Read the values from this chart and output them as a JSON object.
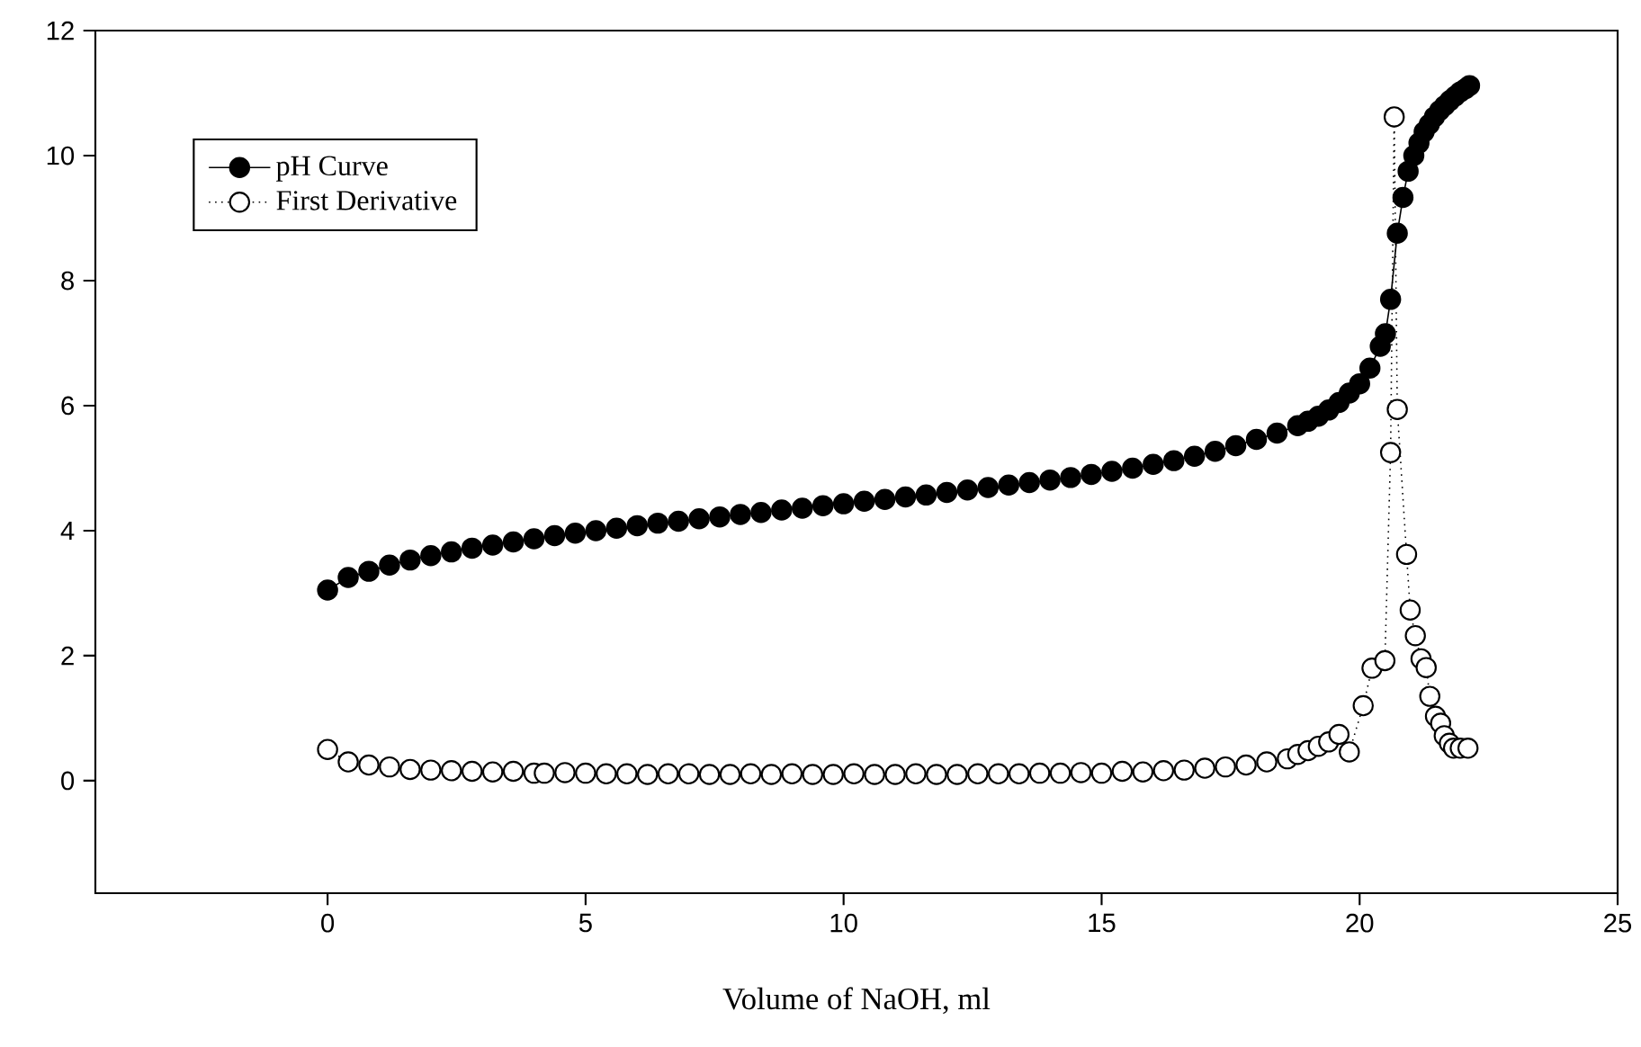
{
  "chart_data": {
    "type": "line",
    "xlabel": "Volume of NaOH, ml",
    "xlim": [
      -4.5,
      25
    ],
    "ylim": [
      -1.8,
      12
    ],
    "xticks": [
      0,
      5,
      10,
      15,
      20,
      25
    ],
    "yticks": [
      0,
      2,
      4,
      6,
      8,
      10,
      12
    ],
    "legend": "top left",
    "grid": false,
    "series": [
      {
        "name": "pH Curve",
        "color": "#000000",
        "marker": "circle",
        "line_style": "solid",
        "x": [
          0,
          0.4,
          0.8,
          1.2,
          1.6,
          2.0,
          2.4,
          2.8,
          3.2,
          3.6,
          4.0,
          4.4,
          4.8,
          5.2,
          5.6,
          6.0,
          6.4,
          6.8,
          7.2,
          7.6,
          8.0,
          8.4,
          8.8,
          9.2,
          9.6,
          10.0,
          10.4,
          10.8,
          11.2,
          11.6,
          12.0,
          12.4,
          12.8,
          13.2,
          13.6,
          14.0,
          14.4,
          14.8,
          15.2,
          15.6,
          16.0,
          16.4,
          16.8,
          17.2,
          17.6,
          18.0,
          18.4,
          18.8,
          19.0,
          19.2,
          19.4,
          19.6,
          19.8,
          20.0,
          20.2,
          20.4,
          20.5,
          20.6,
          20.73,
          20.84,
          20.94,
          21.05,
          21.15,
          21.25,
          21.35,
          21.45,
          21.55,
          21.65,
          21.75,
          21.85,
          21.95,
          22.05,
          22.13
        ],
        "values": [
          3.05,
          3.25,
          3.35,
          3.45,
          3.53,
          3.6,
          3.66,
          3.72,
          3.77,
          3.82,
          3.87,
          3.92,
          3.96,
          4.0,
          4.04,
          4.08,
          4.12,
          4.15,
          4.19,
          4.22,
          4.26,
          4.29,
          4.33,
          4.36,
          4.4,
          4.43,
          4.47,
          4.5,
          4.54,
          4.57,
          4.61,
          4.65,
          4.69,
          4.73,
          4.77,
          4.81,
          4.85,
          4.9,
          4.95,
          5.0,
          5.06,
          5.12,
          5.19,
          5.27,
          5.36,
          5.46,
          5.56,
          5.68,
          5.75,
          5.83,
          5.93,
          6.05,
          6.2,
          6.35,
          6.6,
          6.95,
          7.15,
          7.7,
          8.76,
          9.33,
          9.75,
          10.0,
          10.2,
          10.38,
          10.5,
          10.62,
          10.72,
          10.8,
          10.88,
          10.95,
          11.02,
          11.07,
          11.12
        ]
      },
      {
        "name": "First Derivative",
        "color": "#000000",
        "marker": "circle",
        "line_style": "dotted",
        "x": [
          0,
          0.4,
          0.8,
          1.2,
          1.6,
          2.0,
          2.4,
          2.8,
          3.2,
          3.6,
          4.0,
          4.2,
          4.6,
          5.0,
          5.4,
          5.8,
          6.2,
          6.6,
          7.0,
          7.4,
          7.8,
          8.2,
          8.6,
          9.0,
          9.4,
          9.8,
          10.2,
          10.6,
          11.0,
          11.4,
          11.8,
          12.2,
          12.6,
          13.0,
          13.4,
          13.8,
          14.2,
          14.6,
          15.0,
          15.4,
          15.8,
          16.2,
          16.6,
          17.0,
          17.4,
          17.8,
          18.2,
          18.6,
          18.8,
          19.0,
          19.2,
          19.4,
          19.6,
          19.8,
          20.07,
          20.24,
          20.49,
          20.6,
          20.67,
          20.73,
          20.91,
          20.98,
          21.08,
          21.19,
          21.29,
          21.36,
          21.47,
          21.57,
          21.64,
          21.74,
          21.82,
          21.95,
          22.1
        ],
        "values": [
          0.5,
          0.3,
          0.25,
          0.22,
          0.18,
          0.17,
          0.16,
          0.15,
          0.14,
          0.15,
          0.12,
          0.12,
          0.13,
          0.12,
          0.11,
          0.11,
          0.1,
          0.11,
          0.11,
          0.1,
          0.1,
          0.11,
          0.1,
          0.11,
          0.1,
          0.1,
          0.11,
          0.1,
          0.1,
          0.11,
          0.1,
          0.1,
          0.11,
          0.11,
          0.11,
          0.12,
          0.12,
          0.13,
          0.12,
          0.15,
          0.14,
          0.16,
          0.17,
          0.2,
          0.22,
          0.25,
          0.3,
          0.35,
          0.42,
          0.48,
          0.55,
          0.62,
          0.74,
          0.46,
          1.2,
          1.8,
          1.92,
          5.25,
          10.62,
          5.94,
          3.62,
          2.73,
          2.32,
          1.95,
          1.81,
          1.35,
          1.03,
          0.92,
          0.72,
          0.6,
          0.52,
          0.52,
          0.52
        ]
      }
    ]
  }
}
